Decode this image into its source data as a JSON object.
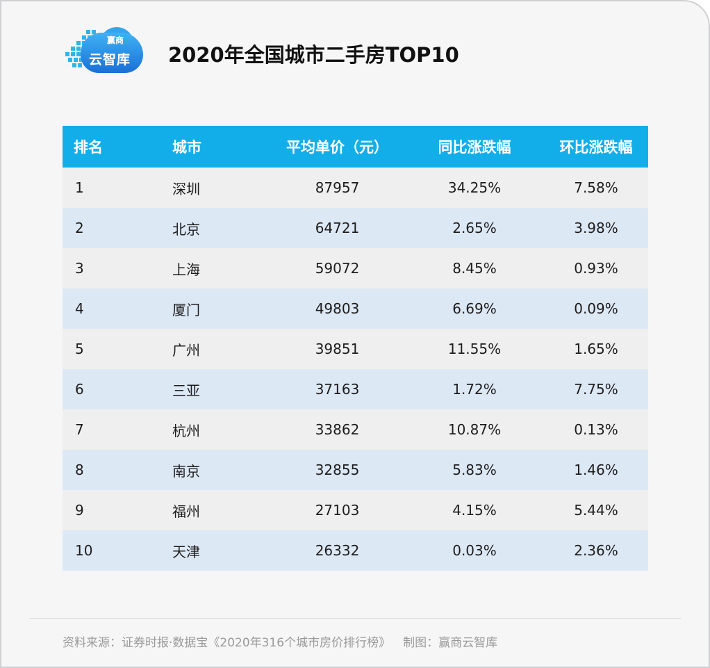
{
  "logo": {
    "line1": "赢商",
    "line2": "云智库"
  },
  "chart_data": {
    "type": "table",
    "title": "2020年全国城市二手房TOP10",
    "columns": [
      "排名",
      "城市",
      "平均单价（元）",
      "同比涨跌幅",
      "环比涨跌幅"
    ],
    "rows": [
      [
        "1",
        "深圳",
        "87957",
        "34.25%",
        "7.58%"
      ],
      [
        "2",
        "北京",
        "64721",
        "2.65%",
        "3.98%"
      ],
      [
        "3",
        "上海",
        "59072",
        "8.45%",
        "0.93%"
      ],
      [
        "4",
        "厦门",
        "49803",
        "6.69%",
        "0.09%"
      ],
      [
        "5",
        "广州",
        "39851",
        "11.55%",
        "1.65%"
      ],
      [
        "6",
        "三亚",
        "37163",
        "1.72%",
        "7.75%"
      ],
      [
        "7",
        "杭州",
        "33862",
        "10.87%",
        "0.13%"
      ],
      [
        "8",
        "南京",
        "32855",
        "5.83%",
        "1.46%"
      ],
      [
        "9",
        "福州",
        "27103",
        "4.15%",
        "5.44%"
      ],
      [
        "10",
        "天津",
        "26332",
        "0.03%",
        "2.36%"
      ]
    ]
  },
  "watermark": "赢商云智库",
  "footer": {
    "source": "资料来源：证券时报·数据宝《2020年316个城市房价排行榜》",
    "credit": "制图：赢商云智库"
  },
  "colors": {
    "header_bg": "#12aeea",
    "row_odd": "#efefef",
    "row_even": "#dde8f5",
    "page_bg": "#f6f6f7"
  }
}
